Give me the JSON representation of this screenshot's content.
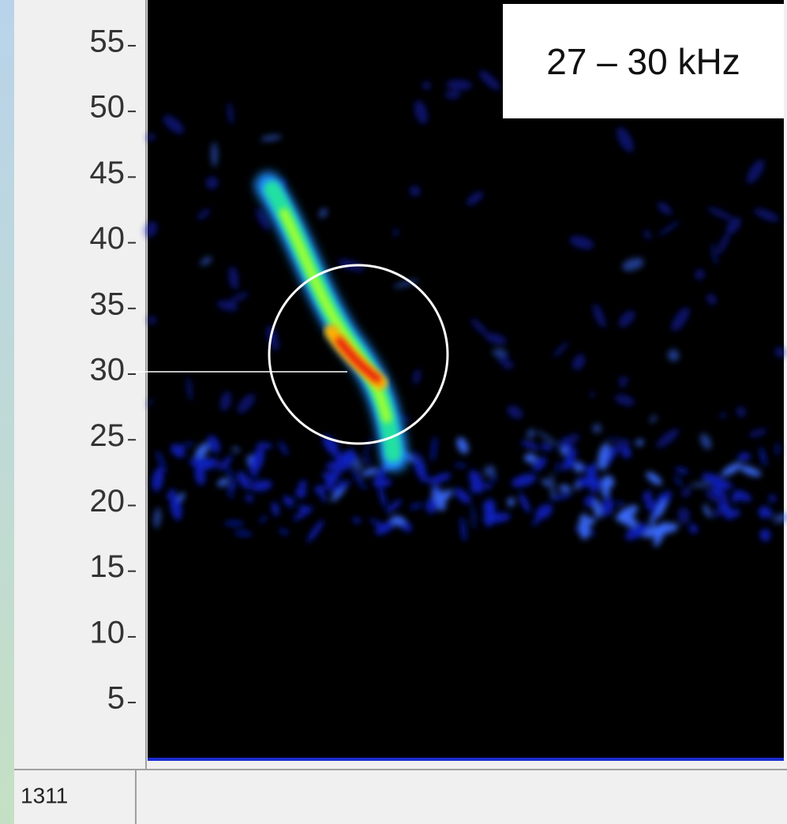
{
  "chart_data": {
    "type": "spectrogram",
    "annotation": "27 – 30 kHz",
    "status": "1311",
    "ylim": [
      0.5,
      58.3
    ],
    "yticks": [
      5,
      10,
      15,
      20,
      25,
      30,
      35,
      40,
      45,
      50,
      55
    ],
    "reference_line": 30
  }
}
